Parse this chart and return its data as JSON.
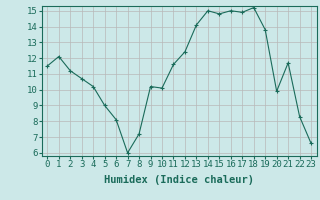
{
  "x": [
    0,
    1,
    2,
    3,
    4,
    5,
    6,
    7,
    8,
    9,
    10,
    11,
    12,
    13,
    14,
    15,
    16,
    17,
    18,
    19,
    20,
    21,
    22,
    23
  ],
  "y": [
    11.5,
    12.1,
    11.2,
    10.7,
    10.2,
    9.0,
    8.1,
    6.0,
    7.2,
    10.2,
    10.1,
    11.6,
    12.4,
    14.1,
    15.0,
    14.8,
    15.0,
    14.9,
    15.2,
    13.8,
    9.9,
    11.7,
    8.3,
    6.6
  ],
  "xlabel": "Humidex (Indice chaleur)",
  "ylim_min": 5.8,
  "ylim_max": 15.3,
  "xlim_min": -0.5,
  "xlim_max": 23.5,
  "yticks": [
    6,
    7,
    8,
    9,
    10,
    11,
    12,
    13,
    14,
    15
  ],
  "xticks": [
    0,
    1,
    2,
    3,
    4,
    5,
    6,
    7,
    8,
    9,
    10,
    11,
    12,
    13,
    14,
    15,
    16,
    17,
    18,
    19,
    20,
    21,
    22,
    23
  ],
  "line_color": "#1a6b5a",
  "marker": "+",
  "bg_color": "#cce8e8",
  "grid_color": "#b8b8b8",
  "xlabel_fontsize": 7.5,
  "tick_fontsize": 6.5
}
